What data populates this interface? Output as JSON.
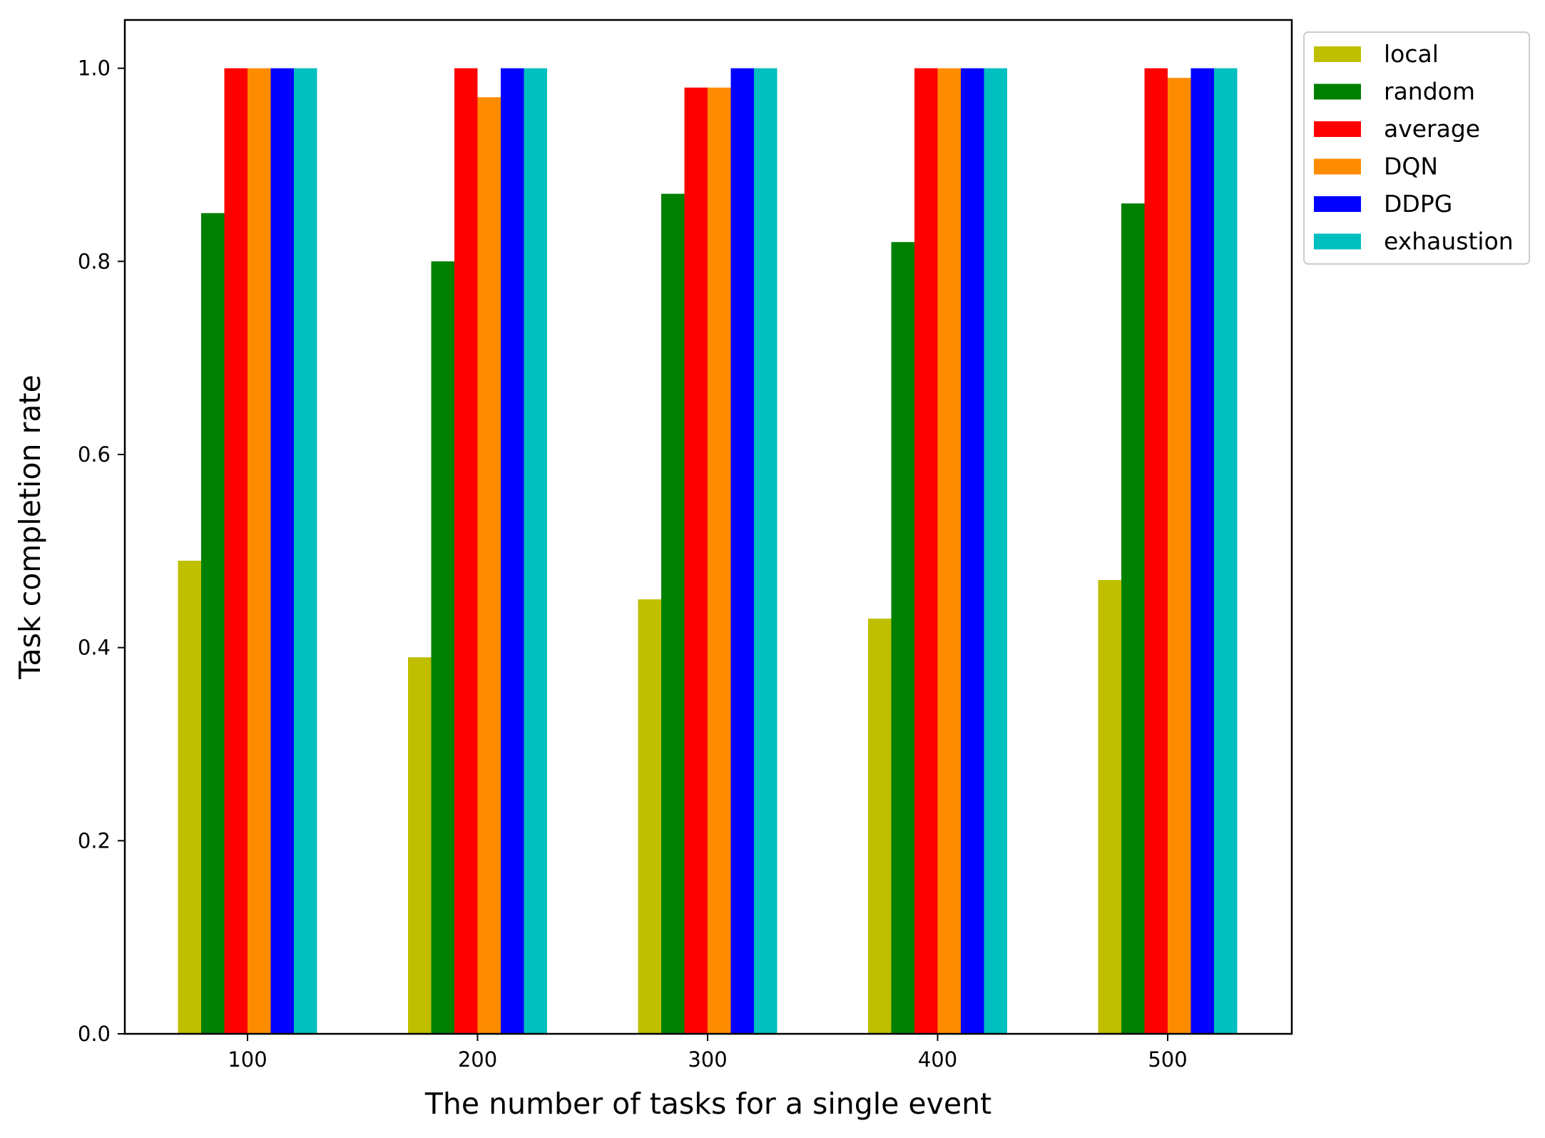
{
  "chart_data": {
    "type": "bar",
    "title": "",
    "xlabel": "The number of tasks for a single event",
    "ylabel": "Task completion rate",
    "categories": [
      "100",
      "200",
      "300",
      "400",
      "500"
    ],
    "ylim": [
      0,
      1.05
    ],
    "yticks": [
      "0.0",
      "0.2",
      "0.4",
      "0.6",
      "0.8",
      "1.0"
    ],
    "grid": false,
    "legend_position": "outside-top-right",
    "series": [
      {
        "name": "local",
        "color": "#bfbf00",
        "values": [
          0.49,
          0.39,
          0.45,
          0.43,
          0.47
        ]
      },
      {
        "name": "random",
        "color": "#008000",
        "values": [
          0.85,
          0.8,
          0.87,
          0.82,
          0.86
        ]
      },
      {
        "name": "average",
        "color": "#ff0000",
        "values": [
          1.0,
          1.0,
          0.98,
          1.0,
          1.0
        ]
      },
      {
        "name": "DQN",
        "color": "#ff8c00",
        "values": [
          1.0,
          0.97,
          0.98,
          1.0,
          0.99
        ]
      },
      {
        "name": "DDPG",
        "color": "#0000ff",
        "values": [
          1.0,
          1.0,
          1.0,
          1.0,
          1.0
        ]
      },
      {
        "name": "exhaustion",
        "color": "#00bfbf",
        "values": [
          1.0,
          1.0,
          1.0,
          1.0,
          1.0
        ]
      }
    ]
  }
}
